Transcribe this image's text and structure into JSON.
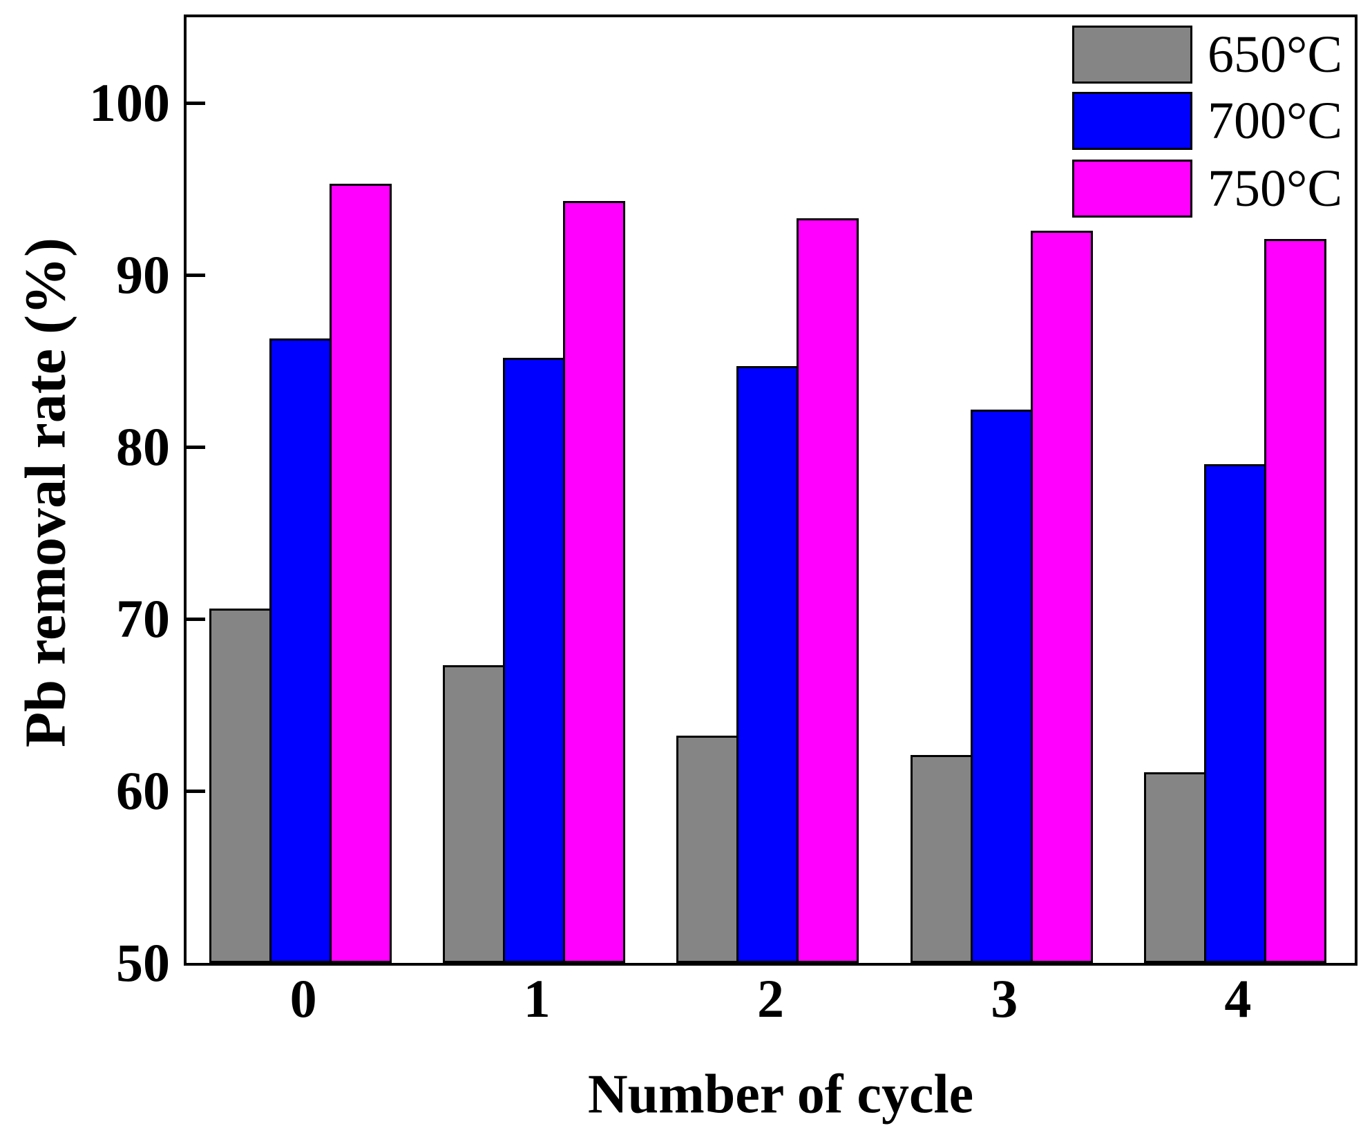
{
  "chart_data": {
    "type": "bar",
    "title": "",
    "xlabel": "Number of cycle",
    "ylabel": "Pb removal rate (%)",
    "categories": [
      "0",
      "1",
      "2",
      "3",
      "4"
    ],
    "series": [
      {
        "name": "650°C",
        "color": "#858585",
        "values": [
          70.6,
          67.3,
          63.2,
          62.1,
          61.1
        ]
      },
      {
        "name": "700°C",
        "color": "#0000FF",
        "values": [
          86.3,
          85.2,
          84.7,
          82.2,
          79.0
        ]
      },
      {
        "name": "750°C",
        "color": "#FF00FF",
        "values": [
          95.3,
          94.3,
          93.3,
          92.6,
          92.1
        ]
      }
    ],
    "ylim": [
      50,
      105
    ],
    "yticks": [
      50,
      60,
      70,
      80,
      90,
      100
    ],
    "grid": false,
    "legend_position": "top-right",
    "bar_border_color": "#000000",
    "frame_color": "#000000",
    "background_color": "#FFFFFF"
  }
}
